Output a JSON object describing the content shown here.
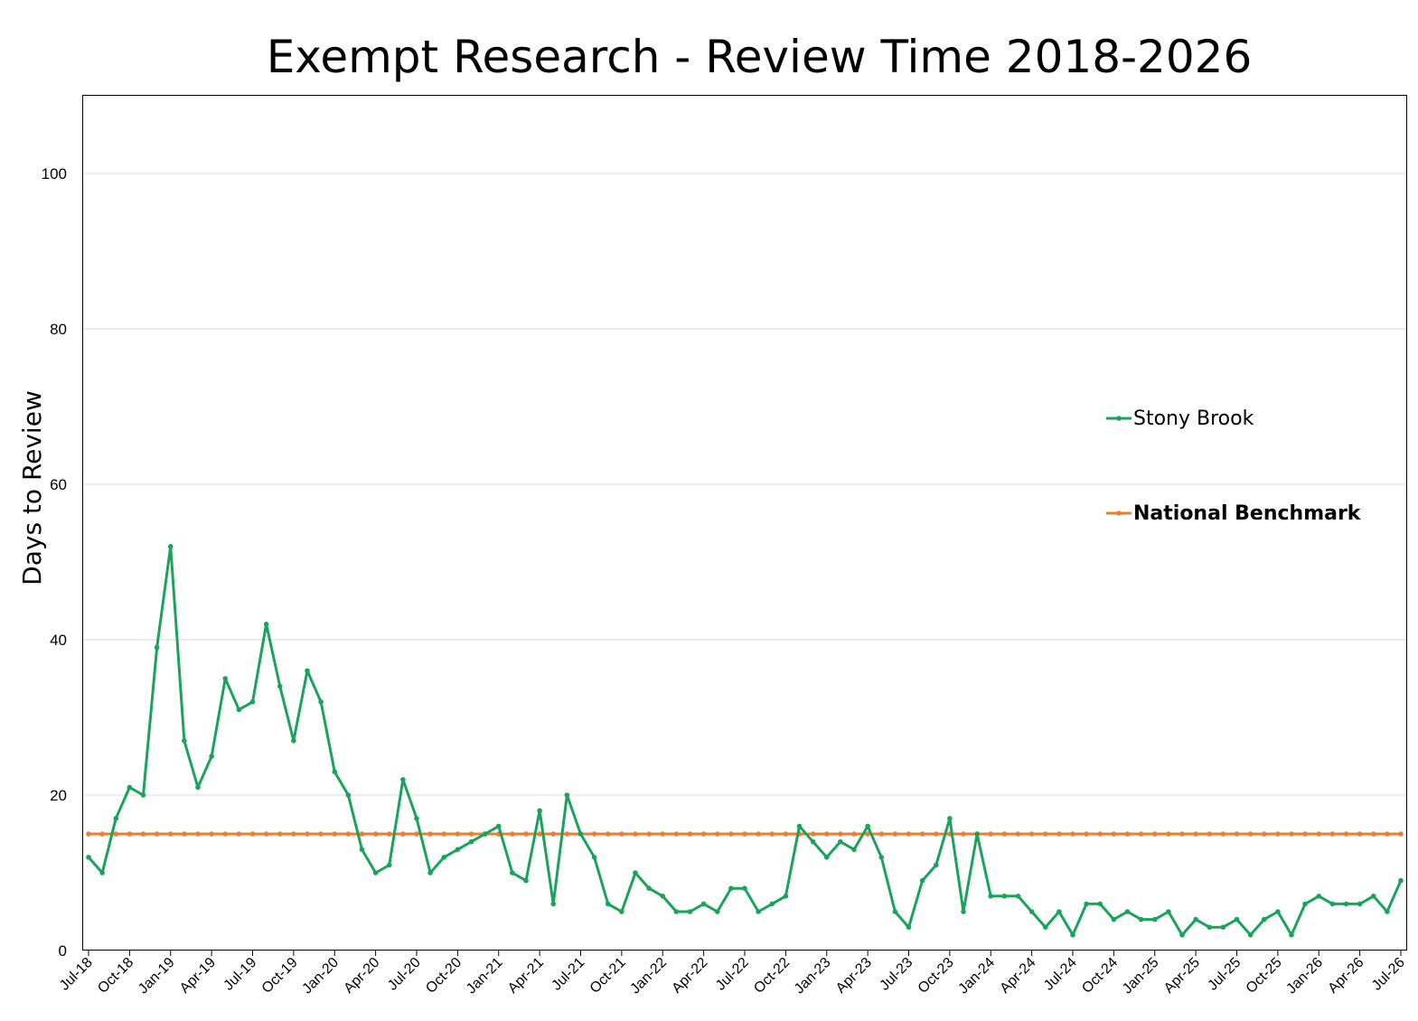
{
  "chart_data": {
    "type": "line",
    "title": "Exempt Research - Review Time 2018-2026",
    "xlabel": "",
    "ylabel": "Days to Review",
    "ylim": [
      0,
      110
    ],
    "yticks": [
      0,
      20,
      40,
      60,
      80,
      100
    ],
    "grid": "horizontal",
    "legend_position": "right",
    "x_tick_labels": [
      "Jul-18",
      "Oct-18",
      "Jan-19",
      "Apr-19",
      "Jul-19",
      "Oct-19",
      "Jan-20",
      "Apr-20",
      "Jul-20",
      "Oct-20",
      "Jan-21",
      "Apr-21",
      "Jul-21",
      "Oct-21",
      "Jan-22",
      "Apr-22",
      "Jul-22",
      "Oct-22",
      "Jan-23",
      "Apr-23",
      "Jul-23",
      "Oct-23",
      "Jan-24",
      "Apr-24",
      "Jul-24",
      "Oct-24",
      "Jan-25",
      "Apr-25",
      "Jul-25",
      "Oct-25",
      "Jan-26",
      "Apr-26",
      "Jul-26"
    ],
    "series": [
      {
        "name": "Stony Brook",
        "color": "#1aa35a",
        "values": [
          12,
          10,
          17,
          21,
          20,
          39,
          52,
          27,
          21,
          25,
          35,
          31,
          32,
          42,
          34,
          27,
          36,
          32,
          23,
          20,
          13,
          10,
          11,
          22,
          17,
          10,
          12,
          13,
          14,
          15,
          16,
          10,
          9,
          18,
          6,
          20,
          15,
          12,
          6,
          5,
          10,
          8,
          7,
          5,
          5,
          6,
          5,
          8,
          8,
          5,
          6,
          7,
          16,
          14,
          12,
          14,
          13,
          16,
          12,
          5,
          3,
          9,
          11,
          17,
          5,
          15,
          7,
          7,
          7,
          5,
          3,
          5,
          2,
          6,
          6,
          4,
          5,
          4,
          4,
          5,
          2,
          4,
          3,
          3,
          4,
          2,
          4,
          5,
          2,
          6,
          7,
          6,
          6,
          6,
          7,
          5,
          9
        ]
      },
      {
        "name": "National Benchmark",
        "color": "#ed7d31",
        "values": [
          15,
          15,
          15,
          15,
          15,
          15,
          15,
          15,
          15,
          15,
          15,
          15,
          15,
          15,
          15,
          15,
          15,
          15,
          15,
          15,
          15,
          15,
          15,
          15,
          15,
          15,
          15,
          15,
          15,
          15,
          15,
          15,
          15,
          15,
          15,
          15,
          15,
          15,
          15,
          15,
          15,
          15,
          15,
          15,
          15,
          15,
          15,
          15,
          15,
          15,
          15,
          15,
          15,
          15,
          15,
          15,
          15,
          15,
          15,
          15,
          15,
          15,
          15,
          15,
          15,
          15,
          15,
          15,
          15,
          15,
          15,
          15,
          15,
          15,
          15,
          15,
          15,
          15,
          15,
          15,
          15,
          15,
          15,
          15,
          15,
          15,
          15,
          15,
          15,
          15,
          15,
          15,
          15,
          15,
          15,
          15,
          15
        ]
      }
    ]
  }
}
